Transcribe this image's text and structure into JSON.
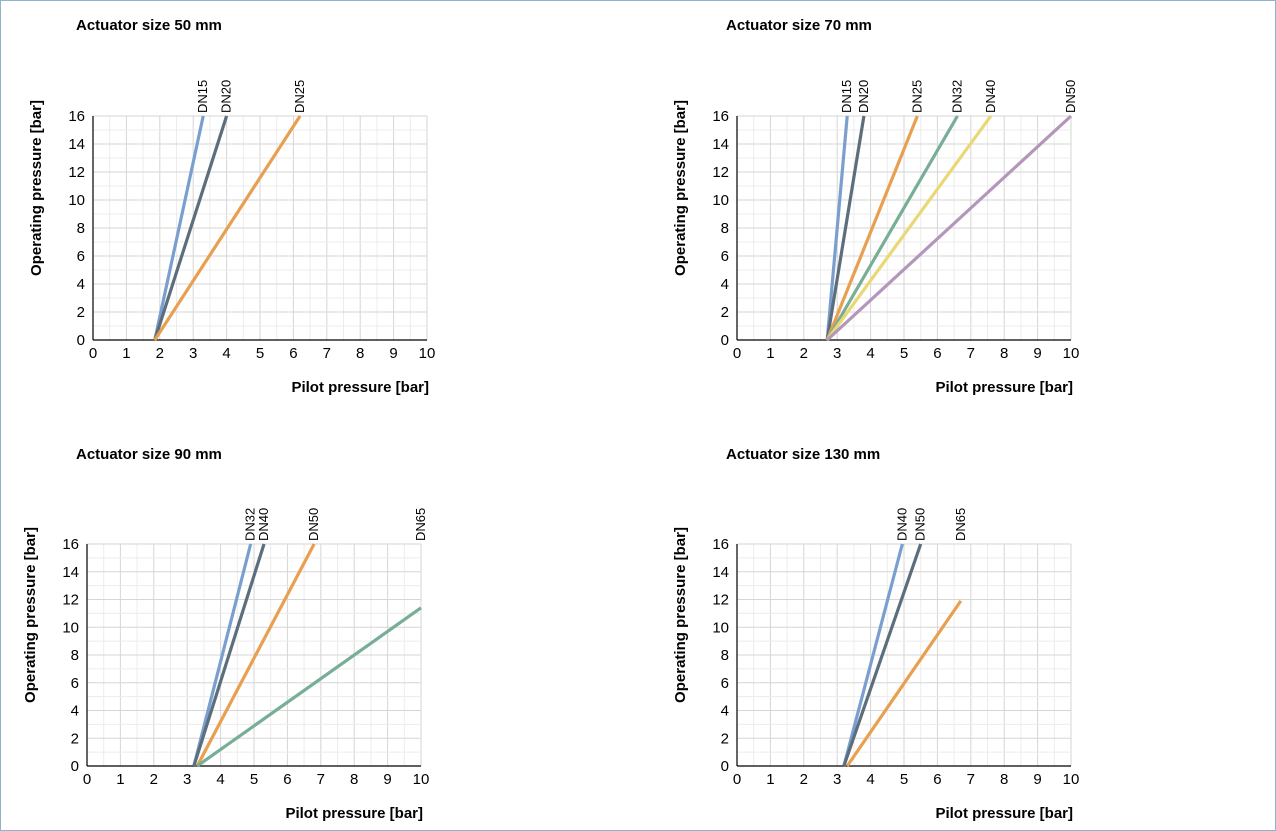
{
  "chart_data": [
    {
      "type": "line",
      "title": "Actuator size 50 mm",
      "xlabel": "Pilot pressure [bar]",
      "ylabel": "Operating pressure [bar]",
      "xlim": [
        0,
        10
      ],
      "ylim": [
        0,
        16
      ],
      "xticks": [
        "0",
        "1",
        "2",
        "3",
        "4",
        "5",
        "6",
        "7",
        "8",
        "9",
        "10"
      ],
      "yticks": [
        "0",
        "2",
        "4",
        "6",
        "8",
        "10",
        "12",
        "14",
        "16"
      ],
      "grid": true,
      "series": [
        {
          "name": "DN15",
          "color": "#7a9fcf",
          "x": [
            1.85,
            3.3
          ],
          "y": [
            0,
            16
          ]
        },
        {
          "name": "DN20",
          "color": "#5c6e7b",
          "x": [
            1.85,
            4.0
          ],
          "y": [
            0,
            16
          ]
        },
        {
          "name": "DN25",
          "color": "#e8a050",
          "x": [
            1.85,
            6.2
          ],
          "y": [
            0,
            16
          ]
        }
      ]
    },
    {
      "type": "line",
      "title": "Actuator size 70 mm",
      "xlabel": "Pilot pressure [bar]",
      "ylabel": "Operating pressure [bar]",
      "xlim": [
        0,
        10
      ],
      "ylim": [
        0,
        16
      ],
      "xticks": [
        "0",
        "1",
        "2",
        "3",
        "4",
        "5",
        "6",
        "7",
        "8",
        "9",
        "10"
      ],
      "yticks": [
        "0",
        "2",
        "4",
        "6",
        "8",
        "10",
        "12",
        "14",
        "16"
      ],
      "grid": true,
      "series": [
        {
          "name": "DN15",
          "color": "#7a9fcf",
          "x": [
            2.7,
            3.3
          ],
          "y": [
            0,
            16
          ]
        },
        {
          "name": "DN20",
          "color": "#5c6e7b",
          "x": [
            2.7,
            3.8
          ],
          "y": [
            0,
            16
          ]
        },
        {
          "name": "DN25",
          "color": "#e8a050",
          "x": [
            2.7,
            5.4
          ],
          "y": [
            0,
            16
          ]
        },
        {
          "name": "DN32",
          "color": "#78ae96",
          "x": [
            2.7,
            6.6
          ],
          "y": [
            0,
            16
          ]
        },
        {
          "name": "DN40",
          "color": "#ead876",
          "x": [
            2.7,
            7.6
          ],
          "y": [
            0,
            16
          ]
        },
        {
          "name": "DN50",
          "color": "#b496bb",
          "x": [
            2.7,
            10.0
          ],
          "y": [
            0,
            16
          ]
        }
      ]
    },
    {
      "type": "line",
      "title": "Actuator size 90 mm",
      "xlabel": "Pilot pressure [bar]",
      "ylabel": "Operating pressure [bar]",
      "xlim": [
        0,
        10
      ],
      "ylim": [
        0,
        16
      ],
      "xticks": [
        "0",
        "1",
        "2",
        "3",
        "4",
        "5",
        "6",
        "7",
        "8",
        "9",
        "10"
      ],
      "yticks": [
        "0",
        "2",
        "4",
        "6",
        "8",
        "10",
        "12",
        "14",
        "16"
      ],
      "grid": true,
      "series": [
        {
          "name": "DN32",
          "color": "#7a9fcf",
          "x": [
            3.2,
            4.9
          ],
          "y": [
            0,
            16
          ]
        },
        {
          "name": "DN40",
          "color": "#5c6e7b",
          "x": [
            3.2,
            5.3
          ],
          "y": [
            0,
            16
          ]
        },
        {
          "name": "DN50",
          "color": "#e8a050",
          "x": [
            3.3,
            6.8
          ],
          "y": [
            0,
            16
          ]
        },
        {
          "name": "DN65",
          "color": "#78ae96",
          "x": [
            3.3,
            10.0
          ],
          "y": [
            0,
            11.4
          ]
        }
      ]
    },
    {
      "type": "line",
      "title": "Actuator size 130 mm",
      "xlabel": "Pilot pressure [bar]",
      "ylabel": "Operating pressure [bar]",
      "xlim": [
        0,
        10
      ],
      "ylim": [
        0,
        16
      ],
      "xticks": [
        "0",
        "1",
        "2",
        "3",
        "4",
        "5",
        "6",
        "7",
        "8",
        "9",
        "10"
      ],
      "yticks": [
        "0",
        "2",
        "4",
        "6",
        "8",
        "10",
        "12",
        "14",
        "16"
      ],
      "grid": true,
      "series": [
        {
          "name": "DN40",
          "color": "#7a9fcf",
          "x": [
            3.2,
            4.95
          ],
          "y": [
            0,
            16
          ]
        },
        {
          "name": "DN50",
          "color": "#5c6e7b",
          "x": [
            3.2,
            5.5
          ],
          "y": [
            0,
            16
          ]
        },
        {
          "name": "DN65",
          "color": "#e8a050",
          "x": [
            3.3,
            6.7
          ],
          "y": [
            0,
            11.9
          ]
        }
      ]
    }
  ]
}
